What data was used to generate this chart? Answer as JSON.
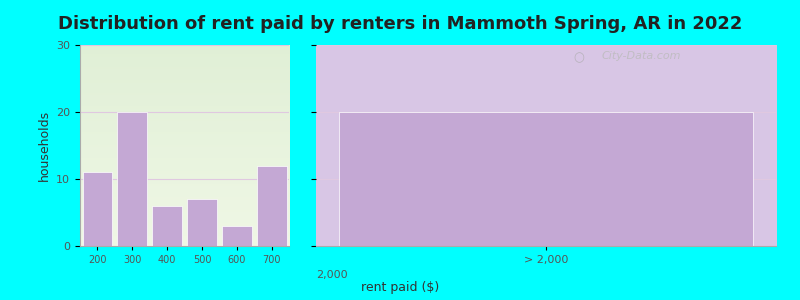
{
  "title": "Distribution of rent paid by renters in Mammoth Spring, AR in 2022",
  "xlabel": "rent paid ($)",
  "ylabel": "households",
  "bar_color": "#c4a8d4",
  "bar_edgecolor": "#ffffff",
  "ylim": [
    0,
    30
  ],
  "yticks": [
    0,
    10,
    20,
    30
  ],
  "background_color": "#00ffff",
  "title_fontsize": 13,
  "watermark": "City-Data.com",
  "left_categories": [
    "200",
    "300",
    "400",
    "500",
    "600",
    "700"
  ],
  "left_values": [
    11,
    20,
    6,
    7,
    3,
    12
  ],
  "right_categories": [
    "> 2,000"
  ],
  "right_values": [
    20
  ],
  "mid_label": "2,000",
  "left_bg_color_top": "#e8f2de",
  "left_bg_color_bottom": "#f5faf0",
  "right_bg_color": "#e8e0f0",
  "grid_color": "#e8c8e8",
  "grid_linewidth": 0.8,
  "spine_color": "#aaaaaa"
}
